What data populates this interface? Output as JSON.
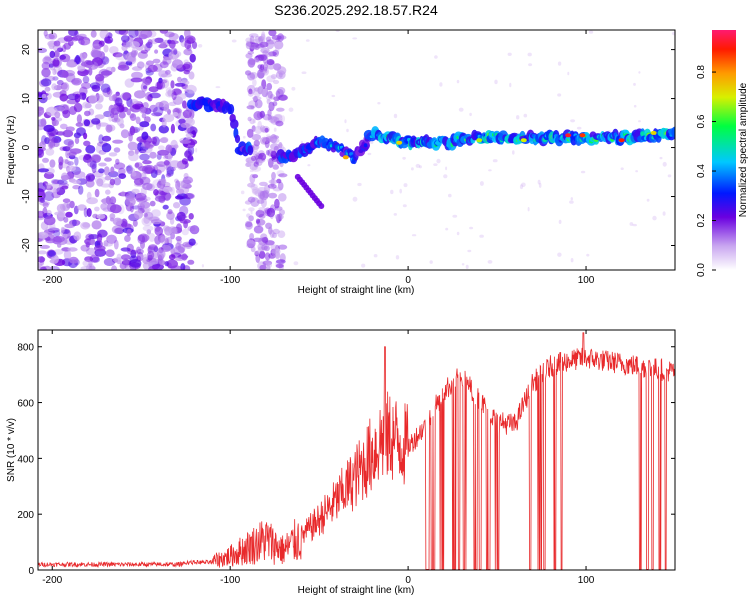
{
  "title": "S236.2025.292.18.57.R24",
  "colors": {
    "snr_line": "#e8292b",
    "axis": "#000000",
    "background": "#ffffff"
  },
  "chart_data": [
    {
      "type": "heatmap",
      "name": "spectrogram",
      "xlabel": "Height of straight line (km)",
      "ylabel": "Frequency (Hz)",
      "xlim": [
        -208,
        150
      ],
      "ylim": [
        -25,
        24
      ],
      "xticks": [
        -200,
        -100,
        0,
        100
      ],
      "xtick_labels": [
        "-200",
        "-100",
        "0",
        "100"
      ],
      "yticks": [
        -20,
        -10,
        0,
        10,
        20
      ],
      "ytick_labels": [
        "-20",
        "-10",
        "0",
        "10",
        "20"
      ],
      "ridge": {
        "description_x_km": [
          -120,
          -110,
          -100,
          -95,
          -70,
          -60,
          -50,
          -40,
          -30,
          -20,
          -10,
          0,
          20,
          40,
          60,
          80,
          100,
          120,
          150
        ],
        "frequency_hz": [
          9,
          9,
          8,
          0,
          -2,
          -1,
          1,
          0,
          -2,
          3,
          2,
          1,
          1,
          2,
          2,
          2,
          2,
          2,
          3
        ]
      },
      "colorbar": {
        "label": "Normalized spectral amplitude",
        "range": [
          0,
          0.97
        ],
        "ticks": [
          0.0,
          0.2,
          0.4,
          0.6,
          0.8
        ],
        "tick_labels": [
          "0.0",
          "0.2",
          "0.4",
          "0.6",
          "0.8"
        ]
      }
    },
    {
      "type": "line",
      "name": "snr",
      "xlabel": "Height of straight line (km)",
      "ylabel": "SNR (10 * v/v)",
      "xlim": [
        -208,
        150
      ],
      "ylim": [
        0,
        860
      ],
      "xticks": [
        -200,
        -100,
        0,
        100
      ],
      "xtick_labels": [
        "-200",
        "-100",
        "0",
        "100"
      ],
      "yticks": [
        0,
        200,
        400,
        600,
        800
      ],
      "ytick_labels": [
        "0",
        "200",
        "400",
        "600",
        "800"
      ],
      "x": [
        -208,
        -190,
        -170,
        -150,
        -130,
        -110,
        -100,
        -90,
        -80,
        -70,
        -60,
        -50,
        -40,
        -30,
        -20,
        -15,
        -10,
        0,
        10,
        20,
        30,
        40,
        50,
        60,
        70,
        80,
        90,
        100,
        110,
        120,
        130,
        140,
        150
      ],
      "y": [
        20,
        20,
        20,
        20,
        20,
        30,
        50,
        80,
        110,
        70,
        120,
        180,
        250,
        330,
        420,
        470,
        480,
        440,
        520,
        640,
        700,
        610,
        530,
        520,
        670,
        730,
        750,
        760,
        750,
        740,
        730,
        720,
        710
      ]
    }
  ]
}
